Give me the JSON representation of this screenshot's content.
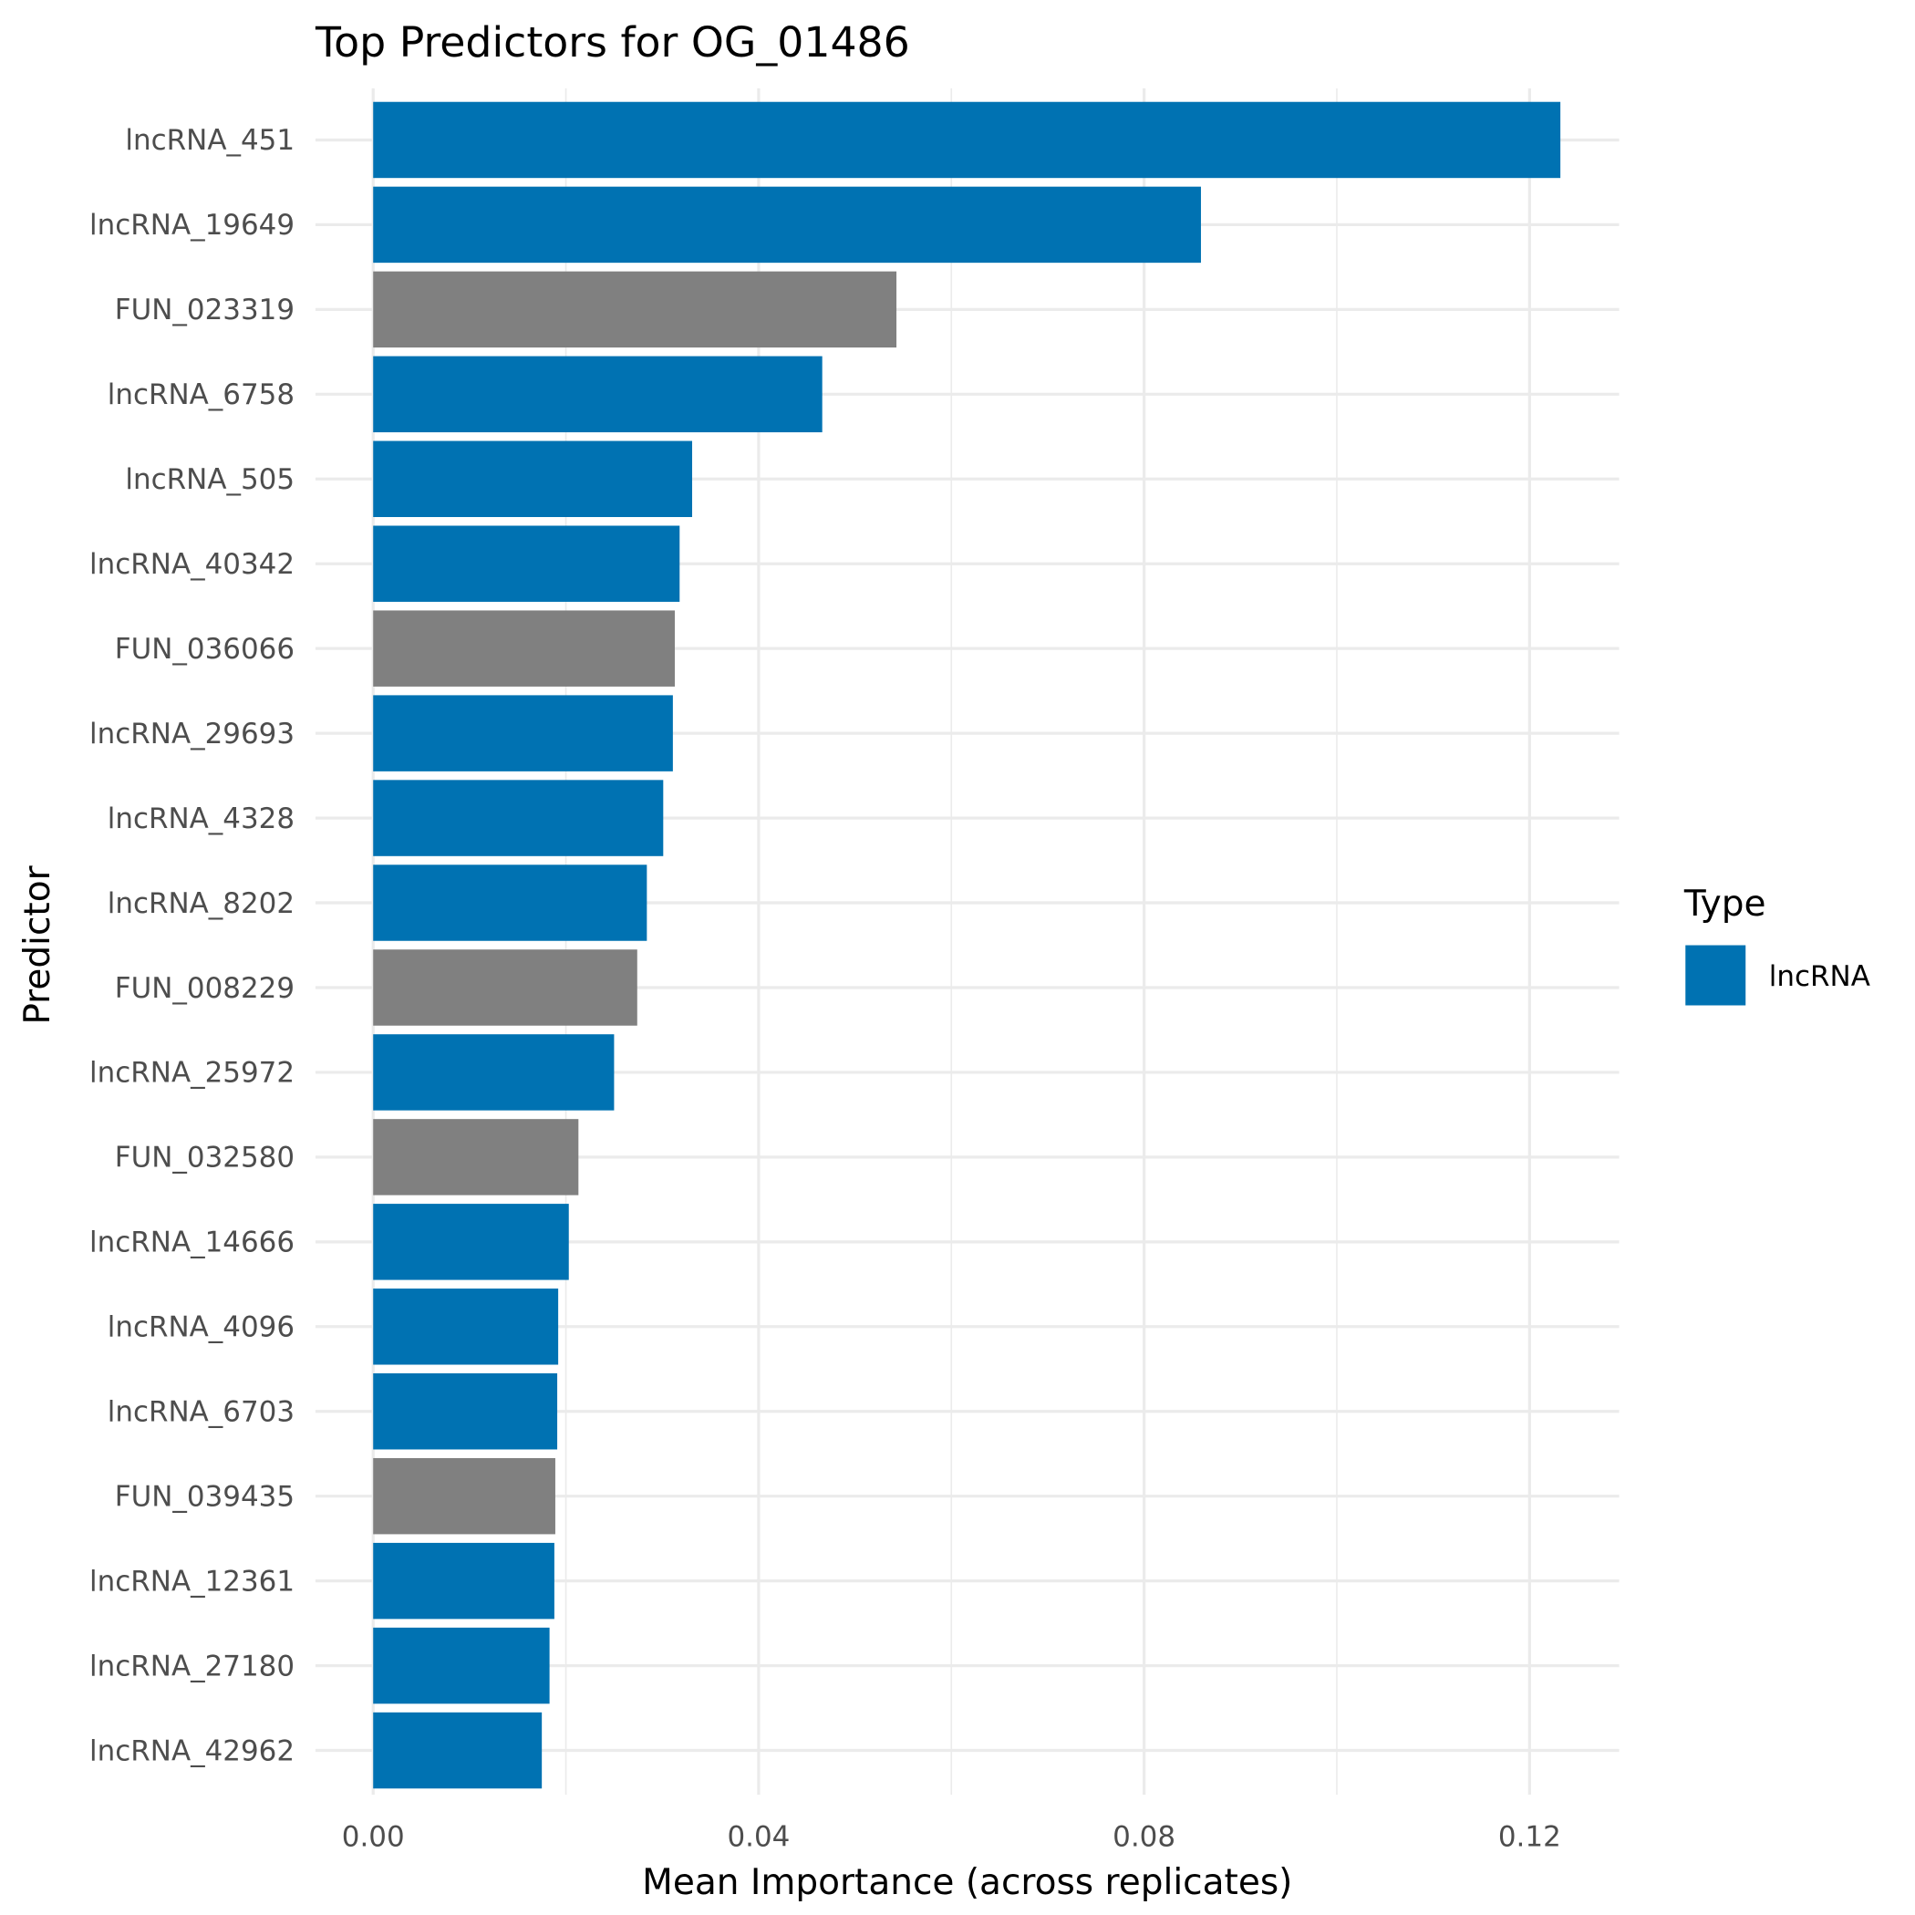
{
  "chart_data": {
    "type": "bar",
    "orientation": "horizontal",
    "title": "Top Predictors for OG_01486",
    "xlabel": "Mean Importance (across replicates)",
    "ylabel": "Predictor",
    "xlim": [
      0,
      0.13
    ],
    "xticks": [
      0,
      0.04,
      0.08,
      0.12
    ],
    "xtick_labels": [
      "0.00",
      "0.04",
      "0.08",
      "0.12"
    ],
    "grid": true,
    "legend": {
      "title": "Type",
      "position": "right",
      "entries": [
        {
          "label": "lncRNA",
          "color": "#0072B2"
        }
      ]
    },
    "colors": {
      "lncRNA": "#0072B2",
      "FUN": "#808080"
    },
    "categories": [
      "lncRNA_451",
      "lncRNA_19649",
      "FUN_023319",
      "lncRNA_6758",
      "lncRNA_505",
      "lncRNA_40342",
      "FUN_036066",
      "lncRNA_29693",
      "lncRNA_4328",
      "lncRNA_8202",
      "FUN_008229",
      "lncRNA_25972",
      "FUN_032580",
      "lncRNA_14666",
      "lncRNA_4096",
      "lncRNA_6703",
      "FUN_039435",
      "lncRNA_12361",
      "lncRNA_27180",
      "lncRNA_42962"
    ],
    "types": [
      "lncRNA",
      "lncRNA",
      "FUN",
      "lncRNA",
      "lncRNA",
      "lncRNA",
      "FUN",
      "lncRNA",
      "lncRNA",
      "lncRNA",
      "FUN",
      "lncRNA",
      "FUN",
      "lncRNA",
      "lncRNA",
      "lncRNA",
      "FUN",
      "lncRNA",
      "lncRNA",
      "lncRNA"
    ],
    "values": [
      0.1232,
      0.0859,
      0.0543,
      0.0466,
      0.0331,
      0.0318,
      0.0313,
      0.0311,
      0.0301,
      0.0284,
      0.0274,
      0.025,
      0.0213,
      0.0203,
      0.0192,
      0.0191,
      0.0189,
      0.0188,
      0.0183,
      0.0175
    ]
  }
}
